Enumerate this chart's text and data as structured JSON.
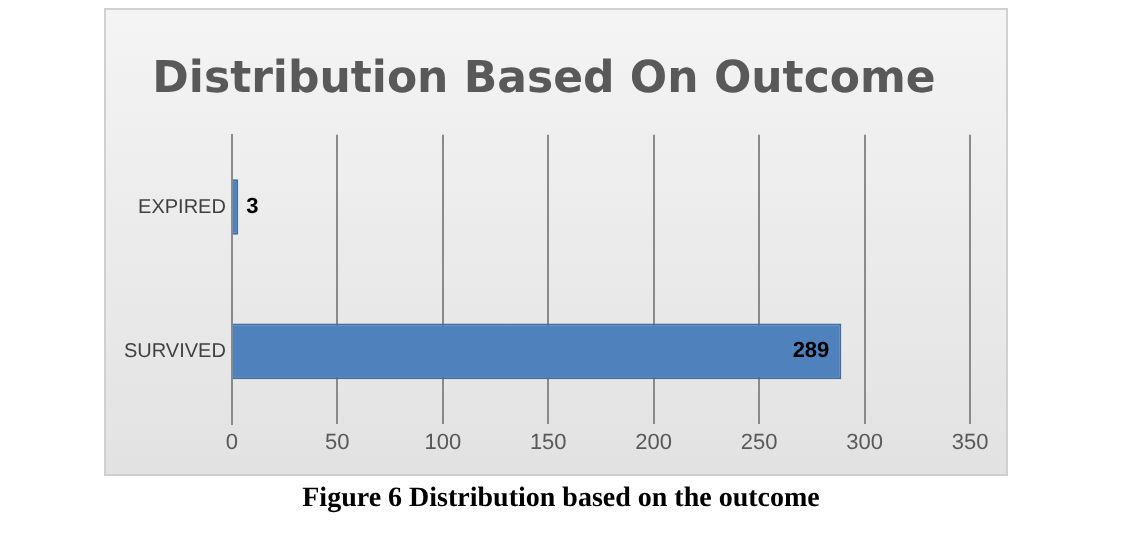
{
  "chart_data": {
    "type": "bar",
    "orientation": "horizontal",
    "title": "Distribution Based On Outcome",
    "categories": [
      "EXPIRED",
      "SURVIVED"
    ],
    "values": [
      3,
      289
    ],
    "color": "#4f81bd",
    "xlim": [
      0,
      350
    ],
    "xticks": [
      0,
      50,
      100,
      150,
      200,
      250,
      300,
      350
    ],
    "grid": "x",
    "data_labels": true,
    "annotations": [
      "Figure 6 Distribution based on the outcome"
    ]
  }
}
